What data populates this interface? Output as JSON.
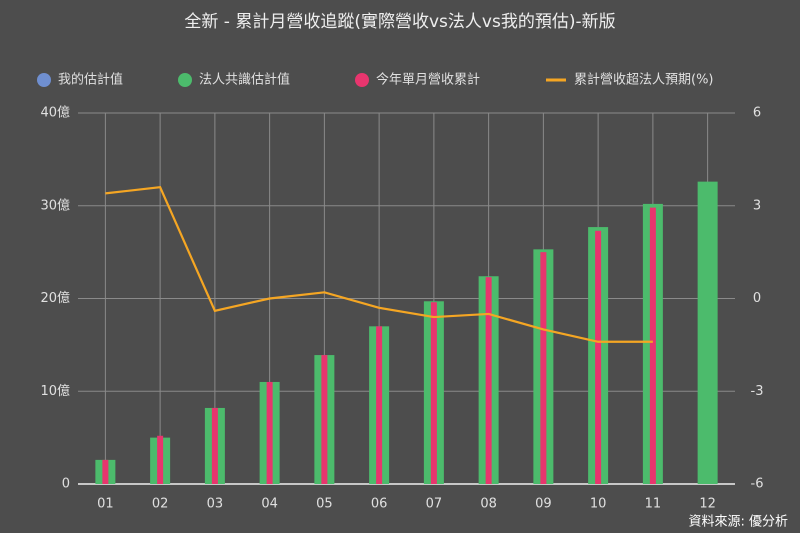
{
  "chart_data": {
    "type": "bar-line",
    "title": "全新 - 累計月營收追蹤(實際營收vs法人vs我的預估)-新版",
    "source": "資料來源: 優分析",
    "categories": [
      "01",
      "02",
      "03",
      "04",
      "05",
      "06",
      "07",
      "08",
      "09",
      "10",
      "11",
      "12"
    ],
    "series": [
      {
        "name": "我的估計值",
        "color": "#6f8fd0",
        "values": [
          null,
          null,
          null,
          null,
          null,
          null,
          null,
          null,
          null,
          null,
          null,
          null
        ]
      },
      {
        "name": "法人共識估計值",
        "color": "#4cbb6c",
        "values": [
          2.6,
          5.0,
          8.2,
          11.0,
          13.9,
          17.0,
          19.7,
          22.4,
          25.3,
          27.7,
          30.2,
          32.6
        ]
      },
      {
        "name": "今年單月營收累計",
        "color": "#e8356e",
        "values": [
          2.6,
          5.2,
          8.2,
          11.0,
          13.9,
          17.0,
          19.6,
          22.3,
          25.0,
          27.3,
          29.8,
          null
        ]
      },
      {
        "name": "累計營收超法人預期(%)",
        "color": "#f5a623",
        "axis": "y2",
        "values": [
          3.4,
          3.6,
          -0.4,
          0.0,
          0.2,
          -0.3,
          -0.6,
          -0.5,
          -1.0,
          -1.4,
          -1.4,
          null
        ]
      }
    ],
    "ylim": [
      0,
      40
    ],
    "yticks": [
      0,
      {
        "value": 10,
        "label": "10億"
      },
      {
        "value": 20,
        "label": "20億"
      },
      {
        "value": 30,
        "label": "30億"
      },
      {
        "value": 40,
        "label": "40億"
      }
    ],
    "y2lim": [
      -6,
      6
    ],
    "y2ticks": [
      -6,
      -3,
      0,
      3,
      6
    ],
    "grid": true
  }
}
